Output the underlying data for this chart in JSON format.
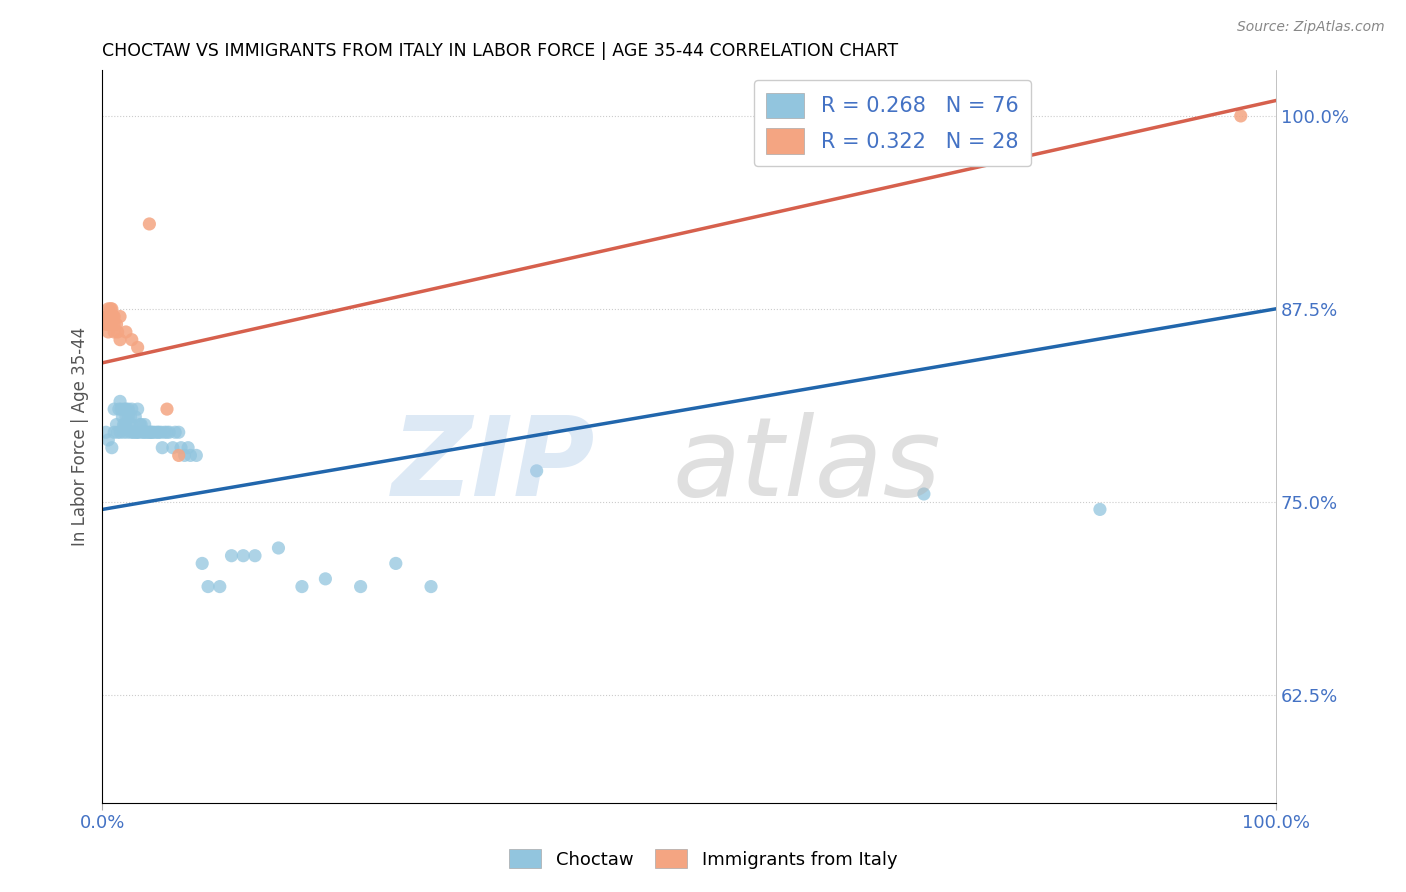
{
  "title": "CHOCTAW VS IMMIGRANTS FROM ITALY IN LABOR FORCE | AGE 35-44 CORRELATION CHART",
  "source": "Source: ZipAtlas.com",
  "ylabel": "In Labor Force | Age 35-44",
  "xmin": 0.0,
  "xmax": 1.0,
  "ymin": 0.555,
  "ymax": 1.03,
  "xtick_positions": [
    0.0,
    1.0
  ],
  "xtick_labels": [
    "0.0%",
    "100.0%"
  ],
  "ytick_values": [
    0.625,
    0.75,
    0.875,
    1.0
  ],
  "ytick_labels": [
    "62.5%",
    "75.0%",
    "87.5%",
    "100.0%"
  ],
  "blue_color": "#92c5de",
  "pink_color": "#f4a582",
  "blue_line_color": "#2166ac",
  "pink_line_color": "#d6604d",
  "legend_text_color": "#4472c4",
  "tick_color": "#4472c4",
  "watermark_zip_color": "#aac8e8",
  "watermark_atlas_color": "#b0b0b0",
  "choctaw_x": [
    0.003,
    0.005,
    0.008,
    0.01,
    0.01,
    0.012,
    0.013,
    0.014,
    0.015,
    0.015,
    0.016,
    0.017,
    0.018,
    0.018,
    0.019,
    0.019,
    0.02,
    0.02,
    0.02,
    0.021,
    0.022,
    0.022,
    0.023,
    0.024,
    0.024,
    0.025,
    0.025,
    0.026,
    0.027,
    0.028,
    0.029,
    0.03,
    0.03,
    0.031,
    0.032,
    0.033,
    0.034,
    0.035,
    0.036,
    0.037,
    0.038,
    0.04,
    0.041,
    0.042,
    0.043,
    0.045,
    0.047,
    0.048,
    0.05,
    0.051,
    0.053,
    0.055,
    0.057,
    0.06,
    0.062,
    0.065,
    0.067,
    0.07,
    0.073,
    0.075,
    0.08,
    0.085,
    0.09,
    0.1,
    0.11,
    0.12,
    0.13,
    0.15,
    0.17,
    0.19,
    0.22,
    0.25,
    0.28,
    0.37,
    0.7,
    0.85
  ],
  "choctaw_y": [
    0.795,
    0.79,
    0.785,
    0.81,
    0.795,
    0.8,
    0.795,
    0.81,
    0.795,
    0.815,
    0.81,
    0.805,
    0.8,
    0.795,
    0.8,
    0.81,
    0.81,
    0.805,
    0.8,
    0.795,
    0.81,
    0.805,
    0.8,
    0.795,
    0.805,
    0.8,
    0.81,
    0.795,
    0.795,
    0.805,
    0.795,
    0.81,
    0.795,
    0.795,
    0.8,
    0.8,
    0.795,
    0.795,
    0.8,
    0.795,
    0.795,
    0.795,
    0.795,
    0.795,
    0.795,
    0.795,
    0.795,
    0.795,
    0.795,
    0.785,
    0.795,
    0.795,
    0.795,
    0.785,
    0.795,
    0.795,
    0.785,
    0.78,
    0.785,
    0.78,
    0.78,
    0.71,
    0.695,
    0.695,
    0.715,
    0.715,
    0.715,
    0.72,
    0.695,
    0.7,
    0.695,
    0.71,
    0.695,
    0.77,
    0.755,
    0.745
  ],
  "italy_x": [
    0.003,
    0.004,
    0.004,
    0.005,
    0.005,
    0.005,
    0.005,
    0.006,
    0.006,
    0.007,
    0.007,
    0.008,
    0.008,
    0.009,
    0.01,
    0.01,
    0.01,
    0.012,
    0.013,
    0.015,
    0.015,
    0.02,
    0.025,
    0.03,
    0.04,
    0.055,
    0.065,
    0.97
  ],
  "italy_y": [
    0.865,
    0.865,
    0.87,
    0.875,
    0.865,
    0.86,
    0.87,
    0.87,
    0.865,
    0.875,
    0.865,
    0.875,
    0.865,
    0.87,
    0.865,
    0.86,
    0.87,
    0.865,
    0.86,
    0.87,
    0.855,
    0.86,
    0.855,
    0.85,
    0.93,
    0.81,
    0.78,
    1.0
  ],
  "blue_trendline_x0": 0.0,
  "blue_trendline_y0": 0.745,
  "blue_trendline_x1": 1.0,
  "blue_trendline_y1": 0.875,
  "pink_trendline_x0": 0.0,
  "pink_trendline_y0": 0.84,
  "pink_trendline_x1": 1.0,
  "pink_trendline_y1": 1.01
}
